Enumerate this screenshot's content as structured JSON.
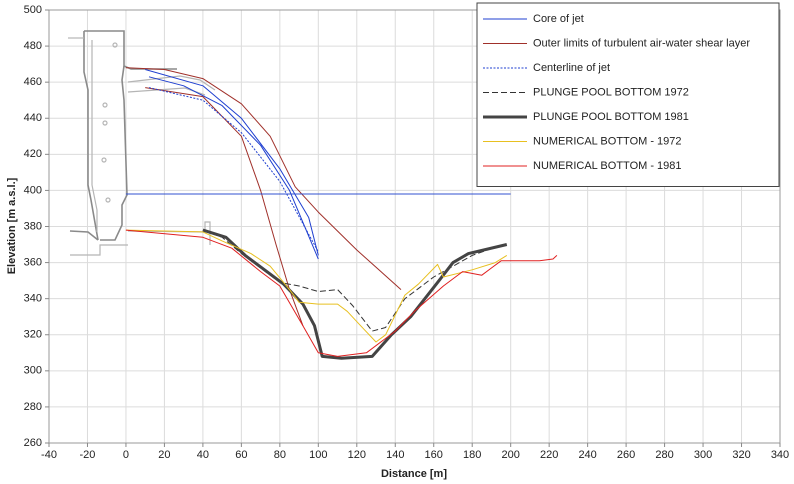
{
  "chart_data": {
    "type": "line",
    "x_label": "Distance [m]",
    "y_label": "Elevation [m a.s.l.]",
    "xlim": [
      -40,
      340
    ],
    "ylim": [
      260,
      500
    ],
    "xticks": [
      -40,
      -20,
      0,
      20,
      40,
      60,
      80,
      100,
      120,
      140,
      160,
      180,
      200,
      220,
      240,
      260,
      280,
      300,
      320,
      340
    ],
    "yticks": [
      260,
      280,
      300,
      320,
      340,
      360,
      380,
      400,
      420,
      440,
      460,
      480,
      500
    ],
    "grid": true,
    "legend": "upper right",
    "series": [
      {
        "name": "Core of jet",
        "color": "#1f3fd0",
        "style": "solid",
        "line_width": 1,
        "x": [
          12,
          30,
          50,
          70,
          85,
          100,
          null,
          10,
          40,
          60,
          80,
          95,
          100
        ],
        "values": [
          463,
          458,
          447,
          425,
          400,
          362,
          null,
          467,
          458,
          440,
          412,
          385,
          364
        ]
      },
      {
        "name": "Outer limits of turbulent air-water shear layer",
        "color": "#a0302a",
        "style": "solid",
        "line_width": 1,
        "x": [
          0,
          20,
          40,
          60,
          75,
          88,
          100,
          120,
          143,
          null,
          10,
          40,
          60,
          70,
          78,
          85,
          92
        ],
        "values": [
          468,
          467,
          462,
          448,
          430,
          402,
          388,
          367,
          345,
          null,
          457,
          452,
          430,
          400,
          370,
          345,
          325
        ]
      },
      {
        "name": "Centerline of jet",
        "color": "#1f3fd0",
        "style": "dotted",
        "line_width": 1,
        "x": [
          12,
          40,
          60,
          80,
          100
        ],
        "values": [
          457,
          450,
          432,
          405,
          366
        ]
      },
      {
        "name": "PLUNGE POOL BOTTOM 1972",
        "color": "#333333",
        "style": "dashed",
        "line_width": 1,
        "x": [
          40,
          50,
          60,
          70,
          80,
          90,
          100,
          110,
          118,
          128,
          135,
          145,
          160,
          170,
          180,
          196
        ],
        "values": [
          378,
          374,
          365,
          357,
          349,
          347,
          344,
          345,
          336,
          322,
          324,
          340,
          352,
          358,
          364,
          370
        ]
      },
      {
        "name": "PLUNGE POOL BOTTOM 1981",
        "color": "#444444",
        "style": "solid",
        "line_width": 3,
        "x": [
          40,
          52,
          62,
          72,
          82,
          92,
          98,
          102,
          112,
          128,
          138,
          148,
          162,
          170,
          178,
          198
        ],
        "values": [
          378,
          374,
          364,
          356,
          348,
          337,
          325,
          308,
          307,
          308,
          320,
          330,
          349,
          360,
          365,
          370
        ]
      },
      {
        "name": "NUMERICAL BOTTOM - 1972",
        "color": "#e8c020",
        "style": "solid",
        "line_width": 1,
        "x": [
          0,
          40,
          50,
          65,
          75,
          85,
          90,
          100,
          110,
          115,
          122,
          130,
          135,
          145,
          152,
          162,
          165,
          180,
          192,
          198
        ],
        "values": [
          378,
          377,
          372,
          365,
          358,
          345,
          338,
          337,
          337,
          333,
          325,
          316,
          320,
          342,
          348,
          359,
          352,
          356,
          360,
          364
        ]
      },
      {
        "name": "NUMERICAL BOTTOM - 1981",
        "color": "#e02020",
        "style": "solid",
        "line_width": 1,
        "x": [
          0,
          40,
          55,
          70,
          80,
          92,
          100,
          110,
          125,
          140,
          150,
          165,
          175,
          185,
          190,
          195,
          215,
          222,
          224
        ],
        "values": [
          378,
          374,
          368,
          355,
          347,
          325,
          310,
          308,
          310,
          322,
          333,
          347,
          355,
          353,
          357,
          361,
          361,
          362,
          364
        ]
      },
      {
        "color": "#3050d0",
        "style": "solid",
        "line_width": 1,
        "x": [
          0,
          200
        ],
        "values": [
          398,
          398
        ]
      }
    ]
  }
}
